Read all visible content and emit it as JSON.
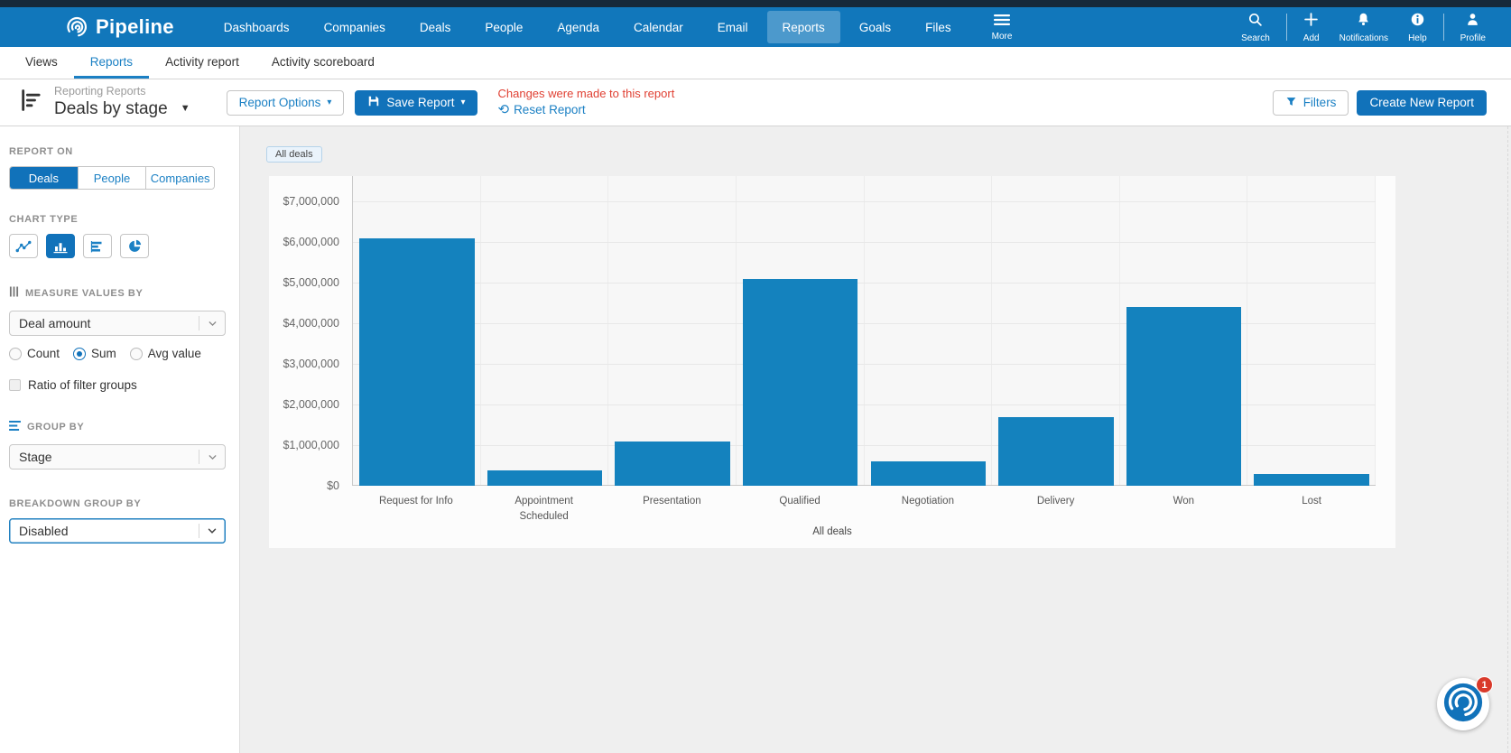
{
  "navbar": {
    "brand": "Pipeline",
    "items": [
      {
        "label": "Dashboards",
        "active": false
      },
      {
        "label": "Companies",
        "active": false
      },
      {
        "label": "Deals",
        "active": false
      },
      {
        "label": "People",
        "active": false
      },
      {
        "label": "Agenda",
        "active": false
      },
      {
        "label": "Calendar",
        "active": false
      },
      {
        "label": "Email",
        "active": false
      },
      {
        "label": "Reports",
        "active": true
      },
      {
        "label": "Goals",
        "active": false
      },
      {
        "label": "Files",
        "active": false
      }
    ],
    "more_label": "More",
    "utilities": [
      {
        "icon": "search-icon",
        "label": "Search"
      },
      {
        "icon": "plus-icon",
        "label": "Add"
      },
      {
        "icon": "bell-icon",
        "label": "Notifications"
      },
      {
        "icon": "info-icon",
        "label": "Help"
      },
      {
        "icon": "person-icon",
        "label": "Profile"
      }
    ]
  },
  "tabbar": {
    "tabs": [
      {
        "label": "Views",
        "active": false
      },
      {
        "label": "Reports",
        "active": true
      },
      {
        "label": "Activity report",
        "active": false
      },
      {
        "label": "Activity scoreboard",
        "active": false
      }
    ]
  },
  "report_header": {
    "breadcrumb": "Reporting Reports",
    "title": "Deals by stage",
    "report_options_label": "Report Options",
    "save_report_label": "Save Report",
    "changes_message": "Changes were made to this report",
    "reset_label": "Reset Report",
    "filters_label": "Filters",
    "create_label": "Create New Report"
  },
  "sidebar": {
    "report_on": {
      "label": "REPORT ON",
      "options": [
        {
          "label": "Deals",
          "active": true
        },
        {
          "label": "People",
          "active": false
        },
        {
          "label": "Companies",
          "active": false
        }
      ]
    },
    "chart_type": {
      "label": "CHART TYPE",
      "options": [
        {
          "icon": "line-chart-icon",
          "active": false
        },
        {
          "icon": "bar-chart-icon",
          "active": true
        },
        {
          "icon": "hbar-chart-icon",
          "active": false
        },
        {
          "icon": "pie-chart-icon",
          "active": false
        }
      ]
    },
    "measure": {
      "label": "MEASURE VALUES BY",
      "value": "Deal amount",
      "radios": [
        {
          "label": "Count",
          "checked": false
        },
        {
          "label": "Sum",
          "checked": true
        },
        {
          "label": "Avg value",
          "checked": false
        }
      ],
      "checkbox_label": "Ratio of filter groups",
      "checkbox_checked": false
    },
    "group_by": {
      "label": "GROUP BY",
      "value": "Stage"
    },
    "breakdown": {
      "label": "BREAKDOWN GROUP BY",
      "value": "Disabled"
    }
  },
  "main": {
    "filter_chip": "All deals"
  },
  "chart_data": {
    "type": "bar",
    "title": "",
    "categories": [
      "Request for Info",
      "Appointment Scheduled",
      "Presentation",
      "Qualified",
      "Negotiation",
      "Delivery",
      "Won",
      "Lost"
    ],
    "values": [
      6100000,
      370000,
      1100000,
      5100000,
      600000,
      1700000,
      4400000,
      290000
    ],
    "series_label": "All deals",
    "xlabel": "",
    "ylabel": "",
    "ylim": [
      0,
      7000000
    ],
    "yticks_top_to_bottom": [
      "$7,000,000",
      "$6,000,000",
      "$5,000,000",
      "$4,000,000",
      "$3,000,000",
      "$2,000,000",
      "$1,000,000",
      "$0"
    ],
    "bar_color": "#1482be",
    "grid": true,
    "legend_position": "none"
  },
  "widget": {
    "badge": "1"
  },
  "colors": {
    "navbar": "#1177bb",
    "accent": "#1172ba",
    "link": "#1b80c4",
    "warning_red": "#e04033",
    "bar": "#1482be"
  }
}
